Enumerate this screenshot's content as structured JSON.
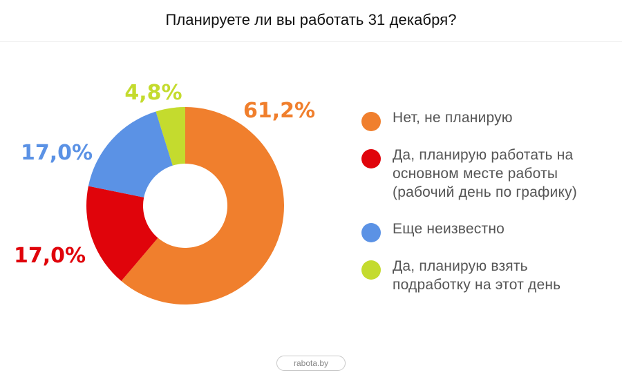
{
  "title": "Планируете ли вы работать 31 декабря?",
  "footer": "rabota.by",
  "chart_data": {
    "type": "pie",
    "donut": true,
    "title": "Планируете ли вы работать 31 декабря?",
    "legend_position": "right",
    "slices": [
      {
        "label": "Нет, не планирую",
        "value": 61.2,
        "value_label": "61,2%",
        "color": "#F07F2D"
      },
      {
        "label": "Да, планирую работать на основном месте работы (рабочий день по графику)",
        "value": 17.0,
        "value_label": "17,0%",
        "color": "#E0040B"
      },
      {
        "label": "Еще неизвестно",
        "value": 17.0,
        "value_label": "17,0%",
        "color": "#5B92E5"
      },
      {
        "label": "Да, планирую взять подработку на этот день",
        "value": 4.8,
        "value_label": "4,8%",
        "color": "#C4DB2E"
      }
    ]
  },
  "legend": [
    {
      "lines": [
        "Нет, не планирую"
      ],
      "color": "#F07F2D"
    },
    {
      "lines": [
        "Да, планирую работать на",
        "основном месте работы",
        "(рабочий день по графику)"
      ],
      "color": "#E0040B"
    },
    {
      "lines": [
        "Еще неизвестно"
      ],
      "color": "#5B92E5"
    },
    {
      "lines": [
        "Да, планирую взять",
        "подработку на этот день"
      ],
      "color": "#C4DB2E"
    }
  ]
}
